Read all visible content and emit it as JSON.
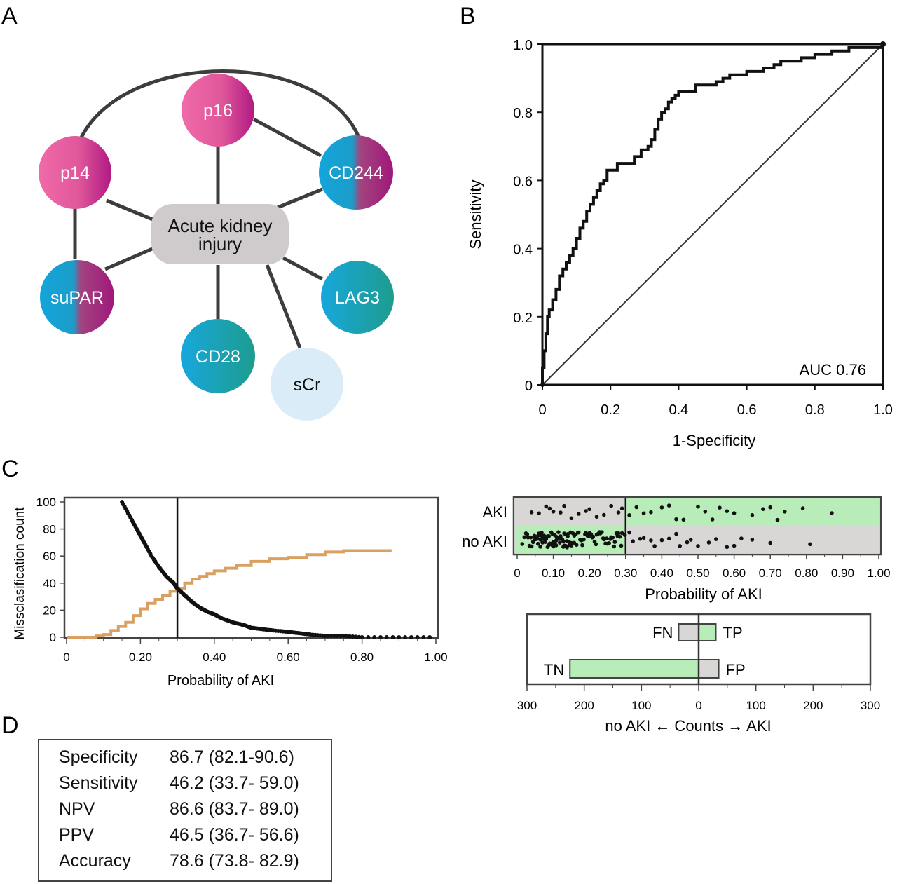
{
  "panels": {
    "a": "A",
    "b": "B",
    "c": "C",
    "d": "D"
  },
  "network": {
    "center_label_line1": "Acute kidney",
    "center_label_line2": "injury",
    "nodes": [
      {
        "id": "p16",
        "label": "p16",
        "fill": "pink"
      },
      {
        "id": "p14",
        "label": "p14",
        "fill": "pink"
      },
      {
        "id": "cd244",
        "label": "CD244",
        "fill": "blue-magenta"
      },
      {
        "id": "supar",
        "label": "suPAR",
        "fill": "blue-magenta"
      },
      {
        "id": "lag3",
        "label": "LAG3",
        "fill": "teal"
      },
      {
        "id": "cd28",
        "label": "CD28",
        "fill": "teal"
      },
      {
        "id": "scr",
        "label": "sCr",
        "fill": "light-blue"
      }
    ],
    "edges": [
      [
        "center",
        "p16"
      ],
      [
        "center",
        "p14"
      ],
      [
        "center",
        "cd244"
      ],
      [
        "center",
        "supar"
      ],
      [
        "center",
        "lag3"
      ],
      [
        "center",
        "cd28"
      ],
      [
        "center",
        "scr"
      ],
      [
        "p16",
        "cd244"
      ],
      [
        "p14",
        "supar"
      ],
      [
        "p14",
        "cd244"
      ]
    ],
    "colors": {
      "pink": "#e0579b",
      "magenta": "#a3177b",
      "blue": "#1aa3d9",
      "teal": "#1b9f9a",
      "light_blue": "#d6ecf9",
      "center_box": "#cdc9ca"
    }
  },
  "chart_data": [
    {
      "id": "roc",
      "type": "line",
      "xlabel": "1-Specificity",
      "ylabel": "Sensitivity",
      "xlim": [
        0,
        1
      ],
      "ylim": [
        0,
        1
      ],
      "xticks": [
        "0",
        "0.2",
        "0.4",
        "0.6",
        "0.8",
        "1.0"
      ],
      "yticks": [
        "0",
        "0.2",
        "0.4",
        "0.6",
        "0.8",
        "1.0"
      ],
      "annotation": "AUC 0.76",
      "series": [
        {
          "style": "step",
          "x": [
            0,
            0,
            0.005,
            0.005,
            0.01,
            0.01,
            0.015,
            0.015,
            0.02,
            0.02,
            0.03,
            0.03,
            0.04,
            0.04,
            0.05,
            0.05,
            0.06,
            0.06,
            0.07,
            0.07,
            0.08,
            0.08,
            0.09,
            0.09,
            0.1,
            0.1,
            0.11,
            0.11,
            0.12,
            0.12,
            0.13,
            0.13,
            0.14,
            0.14,
            0.15,
            0.15,
            0.16,
            0.16,
            0.17,
            0.17,
            0.18,
            0.18,
            0.19,
            0.19,
            0.22,
            0.22,
            0.27,
            0.27,
            0.29,
            0.29,
            0.31,
            0.31,
            0.32,
            0.32,
            0.33,
            0.33,
            0.34,
            0.34,
            0.35,
            0.35,
            0.36,
            0.36,
            0.37,
            0.37,
            0.38,
            0.38,
            0.39,
            0.39,
            0.4,
            0.4,
            0.45,
            0.45,
            0.48,
            0.48,
            0.51,
            0.51,
            0.53,
            0.53,
            0.55,
            0.55,
            0.57,
            0.57,
            0.6,
            0.6,
            0.65,
            0.65,
            0.68,
            0.68,
            0.7,
            0.7,
            0.76,
            0.76,
            0.8,
            0.8,
            0.85,
            0.85,
            0.9,
            0.9,
            0.95,
            0.95,
            1.0,
            1.0
          ],
          "y": [
            0,
            0.05,
            0.05,
            0.1,
            0.1,
            0.15,
            0.15,
            0.2,
            0.2,
            0.22,
            0.22,
            0.25,
            0.25,
            0.28,
            0.28,
            0.32,
            0.32,
            0.34,
            0.34,
            0.36,
            0.36,
            0.38,
            0.38,
            0.4,
            0.4,
            0.43,
            0.43,
            0.46,
            0.46,
            0.48,
            0.48,
            0.51,
            0.51,
            0.53,
            0.53,
            0.55,
            0.55,
            0.57,
            0.57,
            0.59,
            0.59,
            0.6,
            0.6,
            0.63,
            0.63,
            0.65,
            0.65,
            0.67,
            0.67,
            0.69,
            0.69,
            0.7,
            0.7,
            0.72,
            0.72,
            0.75,
            0.75,
            0.78,
            0.78,
            0.8,
            0.8,
            0.81,
            0.81,
            0.83,
            0.83,
            0.84,
            0.84,
            0.85,
            0.85,
            0.86,
            0.86,
            0.88,
            0.88,
            0.88,
            0.88,
            0.89,
            0.89,
            0.9,
            0.9,
            0.91,
            0.91,
            0.91,
            0.91,
            0.92,
            0.92,
            0.93,
            0.93,
            0.94,
            0.94,
            0.95,
            0.95,
            0.96,
            0.96,
            0.97,
            0.97,
            0.98,
            0.98,
            0.99,
            0.99,
            0.99,
            0.99,
            1.0
          ]
        },
        {
          "style": "diagonal",
          "x": [
            0,
            1
          ],
          "y": [
            0,
            1
          ]
        }
      ]
    },
    {
      "id": "misclassification",
      "type": "line",
      "xlabel": "Probability of AKI",
      "ylabel": "Missclasification count",
      "xlim": [
        0,
        1
      ],
      "ylim": [
        0,
        100
      ],
      "xticks": [
        "0",
        "0.20",
        "0.40",
        "0.60",
        "0.80",
        "1.00"
      ],
      "yticks": [
        "0",
        "20",
        "40",
        "60",
        "80",
        "100"
      ],
      "threshold": 0.3,
      "series": [
        {
          "color": "#111111",
          "style": "dots",
          "x": [
            0.15,
            0.17,
            0.19,
            0.21,
            0.23,
            0.25,
            0.27,
            0.29,
            0.3,
            0.32,
            0.34,
            0.36,
            0.38,
            0.4,
            0.42,
            0.45,
            0.48,
            0.5,
            0.53,
            0.56,
            0.6,
            0.63,
            0.66,
            0.7,
            0.75,
            0.8,
            0.9,
            1.0
          ],
          "y": [
            100,
            90,
            80,
            70,
            60,
            52,
            45,
            40,
            36,
            31,
            26,
            22,
            19,
            17,
            14,
            11,
            9,
            7,
            6,
            5,
            4,
            3,
            2,
            1,
            1,
            0,
            0,
            0
          ]
        },
        {
          "color": "#d9a062",
          "style": "step",
          "x": [
            0,
            0.05,
            0.08,
            0.1,
            0.12,
            0.14,
            0.16,
            0.18,
            0.2,
            0.22,
            0.24,
            0.26,
            0.28,
            0.3,
            0.32,
            0.34,
            0.36,
            0.38,
            0.4,
            0.43,
            0.46,
            0.5,
            0.55,
            0.6,
            0.65,
            0.7,
            0.75,
            0.8,
            0.88
          ],
          "y": [
            0,
            0,
            1,
            2,
            5,
            8,
            11,
            16,
            21,
            25,
            28,
            31,
            34,
            36,
            40,
            43,
            45,
            47,
            49,
            51,
            53,
            56,
            58,
            59,
            61,
            63,
            64,
            64,
            64
          ]
        }
      ]
    },
    {
      "id": "probability-scatter",
      "type": "scatter",
      "xlabel": "Probability of AKI",
      "categories": [
        "AKI",
        "no AKI"
      ],
      "xlim": [
        0,
        1
      ],
      "xticks": [
        "0",
        "0.10",
        "0.20",
        "0.30",
        "0.40",
        "0.50",
        "0.60",
        "0.70",
        "0.80",
        "0.90",
        "1.00"
      ],
      "threshold": 0.3,
      "colors": {
        "correct": "#b8ecb8",
        "incorrect": "#d9d6d6"
      },
      "series": [
        {
          "name": "AKI",
          "x": [
            0.04,
            0.06,
            0.08,
            0.09,
            0.1,
            0.12,
            0.13,
            0.15,
            0.17,
            0.19,
            0.2,
            0.22,
            0.24,
            0.26,
            0.28,
            0.29,
            0.31,
            0.33,
            0.35,
            0.37,
            0.4,
            0.42,
            0.44,
            0.46,
            0.5,
            0.52,
            0.54,
            0.56,
            0.58,
            0.6,
            0.65,
            0.68,
            0.7,
            0.72,
            0.74,
            0.79,
            0.87
          ]
        },
        {
          "name": "no AKI",
          "x": [
            0.02,
            0.03,
            0.04,
            0.05,
            0.05,
            0.06,
            0.06,
            0.07,
            0.07,
            0.08,
            0.08,
            0.09,
            0.09,
            0.1,
            0.1,
            0.11,
            0.11,
            0.12,
            0.12,
            0.13,
            0.13,
            0.14,
            0.14,
            0.15,
            0.15,
            0.16,
            0.17,
            0.18,
            0.19,
            0.2,
            0.21,
            0.22,
            0.23,
            0.24,
            0.25,
            0.26,
            0.27,
            0.28,
            0.29,
            0.31,
            0.32,
            0.34,
            0.35,
            0.37,
            0.38,
            0.4,
            0.42,
            0.44,
            0.45,
            0.47,
            0.48,
            0.5,
            0.53,
            0.55,
            0.58,
            0.6,
            0.62,
            0.65,
            0.7,
            0.81
          ]
        }
      ]
    },
    {
      "id": "counts-bar",
      "type": "bar",
      "xlabel": "no AKI ← Counts → AKI",
      "xlim": [
        -300,
        300
      ],
      "xticks": [
        "300",
        "200",
        "100",
        "0",
        "100",
        "200",
        "300"
      ],
      "categories": [
        "FN",
        "TP",
        "TN",
        "FP"
      ],
      "values": [
        35,
        30,
        225,
        35
      ],
      "colors": {
        "correct": "#b8ecb8",
        "incorrect": "#d9d6d6"
      }
    }
  ],
  "metrics": {
    "rows": [
      {
        "name": "Specificity",
        "value": "86.7 (82.1-90.6)"
      },
      {
        "name": "Sensitivity",
        "value": "46.2 (33.7- 59.0)"
      },
      {
        "name": "NPV",
        "value": "86.6 (83.7- 89.0)"
      },
      {
        "name": "PPV",
        "value": "46.5 (36.7- 56.6)"
      },
      {
        "name": "Accuracy",
        "value": "78.6 (73.8- 82.9)"
      }
    ]
  }
}
